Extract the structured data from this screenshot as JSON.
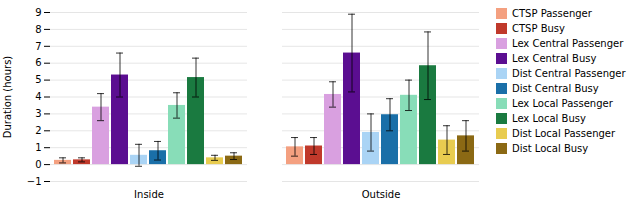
{
  "chart_data": {
    "type": "bar",
    "categories": [
      "Inside",
      "Outside"
    ],
    "series": [
      {
        "name": "CTSP Passenger",
        "color": "#f4a080",
        "values": [
          0.25,
          1.05
        ],
        "errors": [
          0.15,
          0.55
        ]
      },
      {
        "name": "CTSP Busy",
        "color": "#c0392b",
        "values": [
          0.28,
          1.1
        ],
        "errors": [
          0.12,
          0.5
        ]
      },
      {
        "name": "Lex Central Passenger",
        "color": "#d9a0e0",
        "values": [
          3.4,
          4.15
        ],
        "errors": [
          0.8,
          0.75
        ]
      },
      {
        "name": "Lex Central Busy",
        "color": "#5b0e91",
        "values": [
          5.3,
          6.6
        ],
        "errors": [
          1.3,
          2.3
        ]
      },
      {
        "name": "Dist Central Passenger",
        "color": "#aad4f5",
        "values": [
          0.55,
          1.9
        ],
        "errors": [
          0.65,
          1.1
        ]
      },
      {
        "name": "Dist Central Busy",
        "color": "#1a6fa8",
        "values": [
          0.82,
          2.95
        ],
        "errors": [
          0.55,
          0.95
        ]
      },
      {
        "name": "Lex Local Passenger",
        "color": "#88ddb8",
        "values": [
          3.5,
          4.1
        ],
        "errors": [
          0.75,
          0.9
        ]
      },
      {
        "name": "Lex Local Busy",
        "color": "#1a7a40",
        "values": [
          5.15,
          5.85
        ],
        "errors": [
          1.15,
          2.0
        ]
      },
      {
        "name": "Dist Local Passenger",
        "color": "#e8cc50",
        "values": [
          0.4,
          1.45
        ],
        "errors": [
          0.15,
          0.85
        ]
      },
      {
        "name": "Dist Local Busy",
        "color": "#8b6914",
        "values": [
          0.5,
          1.7
        ],
        "errors": [
          0.2,
          0.9
        ]
      }
    ],
    "ylabel": "Duration (hours)",
    "ylim": [
      -1,
      9
    ],
    "yticks": [
      -1,
      0,
      1,
      2,
      3,
      4,
      5,
      6,
      7,
      8,
      9
    ],
    "grid": true,
    "legend": "right"
  }
}
